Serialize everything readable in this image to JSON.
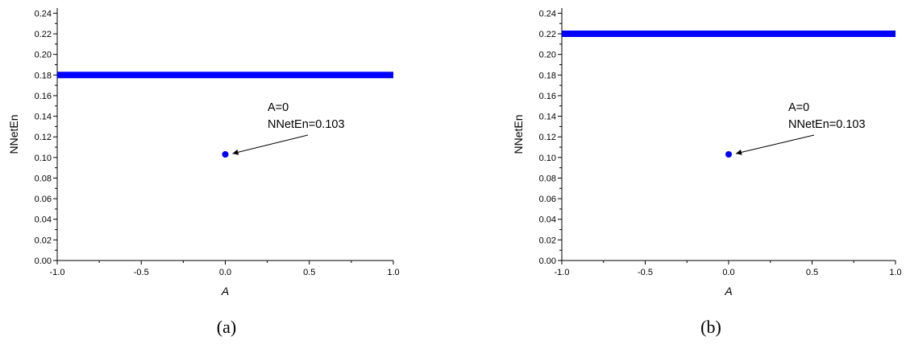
{
  "chart_data": [
    {
      "type": "scatter",
      "caption": "(a)",
      "xlabel": "A",
      "ylabel": "NNetEn",
      "xlim": [
        -1.0,
        1.0
      ],
      "ylim": [
        0.0,
        0.245
      ],
      "xticks": [
        "-1.0",
        "-0.5",
        "0.0",
        "0.5",
        "1.0"
      ],
      "yticks": [
        "0.00",
        "0.02",
        "0.04",
        "0.06",
        "0.08",
        "0.10",
        "0.12",
        "0.14",
        "0.16",
        "0.18",
        "0.20",
        "0.22",
        "0.24"
      ],
      "series": [
        {
          "x_range": [
            -1.0,
            1.0
          ],
          "y": 0.18,
          "color": "#0000ff",
          "style": "dense-points"
        },
        {
          "x": [
            0.0
          ],
          "y": [
            0.103
          ],
          "color": "#0000ff",
          "style": "point"
        }
      ],
      "annotation": {
        "lines": [
          "A=0",
          "NNetEn=0.103"
        ],
        "point": [
          0.0,
          0.103
        ]
      }
    },
    {
      "type": "scatter",
      "caption": "(b)",
      "xlabel": "A",
      "ylabel": "NNetEn",
      "xlim": [
        -1.0,
        1.0
      ],
      "ylim": [
        0.0,
        0.245
      ],
      "xticks": [
        "-1.0",
        "-0.5",
        "0.0",
        "0.5",
        "1.0"
      ],
      "yticks": [
        "0.00",
        "0.02",
        "0.04",
        "0.06",
        "0.08",
        "0.10",
        "0.12",
        "0.14",
        "0.16",
        "0.18",
        "0.20",
        "0.22",
        "0.24"
      ],
      "series": [
        {
          "x_range": [
            -1.0,
            1.0
          ],
          "y": 0.22,
          "color": "#0000ff",
          "style": "dense-points"
        },
        {
          "x": [
            0.0
          ],
          "y": [
            0.103
          ],
          "color": "#0000ff",
          "style": "point"
        }
      ],
      "annotation": {
        "lines": [
          "A=0",
          "NNetEn=0.103"
        ],
        "point": [
          0.0,
          0.103
        ]
      }
    }
  ]
}
